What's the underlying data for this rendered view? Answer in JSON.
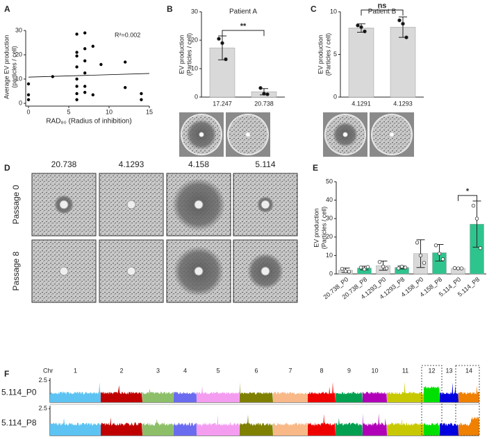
{
  "panels": [
    "A",
    "B",
    "C",
    "D",
    "E",
    "F"
  ],
  "panel_d": {
    "columns": [
      "20.738",
      "4.1293",
      "4.158",
      "5.114"
    ],
    "rows": [
      "Passage 0",
      "Passage 8"
    ]
  },
  "chart_data": [
    {
      "type": "scatter",
      "ylabel": [
        "Average EV production",
        "(particles / cell)"
      ],
      "xlabel": "RAD₈₀ (Radius of inhibition)",
      "annotation": "R²=0.002",
      "x": [
        0,
        0,
        0,
        3,
        6,
        6,
        6,
        6,
        6,
        6,
        6,
        6,
        7,
        7,
        7,
        7,
        7,
        7,
        8,
        8,
        9,
        12,
        12,
        14,
        14
      ],
      "y": [
        1.5,
        3.5,
        8,
        11,
        28.5,
        21,
        19.5,
        15,
        10,
        7,
        4,
        1.5,
        29,
        22.5,
        17.5,
        12.5,
        7,
        4.5,
        23.5,
        3.5,
        16,
        17,
        6.5,
        4,
        1.5
      ],
      "fit": {
        "x": [
          0,
          15
        ],
        "y": [
          10.8,
          12.3
        ]
      },
      "color": "#000000",
      "xlim": [
        0,
        15
      ],
      "xticks": [
        0,
        5,
        10,
        15
      ],
      "ylim": [
        0,
        30
      ],
      "yticks": [
        0,
        10,
        20,
        30
      ]
    },
    {
      "type": "bar",
      "title": "Patient A",
      "ylabel": [
        "EV production",
        "(Particles / cell)"
      ],
      "categories": [
        "17.247",
        "20.738"
      ],
      "values": [
        17.3,
        1.9
      ],
      "errors": [
        4.2,
        1.1
      ],
      "points": [
        [
          20.5,
          19,
          13.3
        ],
        [
          3.2,
          1.2,
          1
        ]
      ],
      "colors": [
        "#d9d9d9",
        "#d9d9d9"
      ],
      "point_style": "filled",
      "significance": "**",
      "ylim": [
        0,
        30
      ],
      "yticks": [
        0,
        10,
        20,
        30
      ]
    },
    {
      "type": "bar",
      "title": "Patient B",
      "ylabel": [
        "EV production",
        "(Particles / cell)"
      ],
      "categories": [
        "4.1291",
        "4.1293"
      ],
      "values": [
        8.1,
        8.2
      ],
      "errors": [
        0.5,
        1.2
      ],
      "points": [
        [
          8.4,
          8.2,
          7.7
        ],
        [
          9,
          8.6,
          7
        ]
      ],
      "colors": [
        "#d9d9d9",
        "#d9d9d9"
      ],
      "point_style": "filled",
      "significance": "ns",
      "ylim": [
        0,
        10
      ],
      "yticks": [
        0,
        5,
        10
      ]
    },
    {
      "type": "bar",
      "ylabel": [
        "EV production",
        "(Particles / cell)"
      ],
      "categories": [
        "20.738_P0",
        "20.738_P8",
        "4.1293_P0",
        "4.1293_P8",
        "4.158_P0",
        "4.158_P8",
        "5.114_P0",
        "5.114_P8"
      ],
      "values": [
        2,
        3.2,
        4.5,
        3.5,
        11,
        11.5,
        3,
        27
      ],
      "errors": [
        1.2,
        1,
        2.5,
        0.8,
        7.5,
        4.5,
        0.3,
        12.5
      ],
      "points": [
        [
          2.8,
          1.5,
          1.2
        ],
        [
          3.5,
          2.5,
          3.8
        ],
        [
          6.5,
          4,
          3
        ],
        [
          3,
          4,
          3.5
        ],
        [
          17,
          10,
          6
        ],
        [
          15.5,
          11,
          8
        ],
        [
          3.2,
          3,
          3
        ],
        [
          37,
          30,
          14
        ]
      ],
      "colors": [
        "#d9d9d9",
        "#2ec48e",
        "#d9d9d9",
        "#2ec48e",
        "#d9d9d9",
        "#2ec48e",
        "#d9d9d9",
        "#2ec48e"
      ],
      "point_style": "open",
      "significance": "*",
      "ylim": [
        0,
        50
      ],
      "yticks": [
        0,
        10,
        20,
        30,
        40,
        50
      ]
    },
    {
      "type": "genome",
      "label": "Chr",
      "chromosomes": [
        "1",
        "2",
        "3",
        "4",
        "5",
        "6",
        "7",
        "8",
        "9",
        "10",
        "11",
        "12",
        "13",
        "14"
      ],
      "colors": [
        "#5cc3f2",
        "#c00000",
        "#8dbf69",
        "#6b6bf0",
        "#f49cf0",
        "#808000",
        "#f8b888",
        "#ee0000",
        "#00a050",
        "#b000b8",
        "#c8c800",
        "#00e000",
        "#0000e0",
        "#f08000"
      ],
      "rows": [
        "5.114_P0",
        "5.114_P8"
      ],
      "ylim": [
        1.6,
        2.6
      ],
      "yticks": [
        2.5
      ]
    }
  ]
}
